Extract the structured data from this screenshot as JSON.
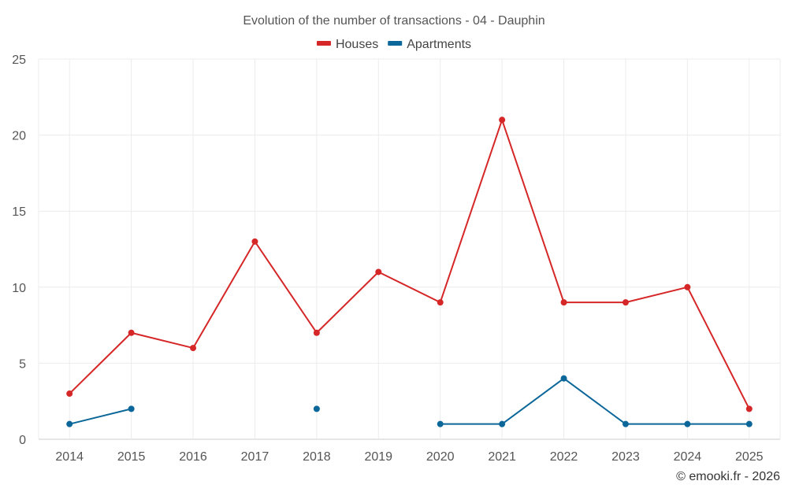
{
  "chart_data": {
    "type": "line",
    "title": "Evolution of the number of transactions - 04 - Dauphin",
    "categories": [
      "2014",
      "2015",
      "2016",
      "2017",
      "2018",
      "2019",
      "2020",
      "2021",
      "2022",
      "2023",
      "2024",
      "2025"
    ],
    "series": [
      {
        "name": "Houses",
        "color": "#d62728",
        "values": [
          3,
          7,
          6,
          13,
          7,
          11,
          9,
          21,
          9,
          9,
          10,
          2
        ]
      },
      {
        "name": "Apartments",
        "color": "#0b6699",
        "values": [
          1,
          2,
          null,
          null,
          2,
          null,
          1,
          1,
          4,
          1,
          1,
          1
        ]
      }
    ],
    "ylim": [
      0,
      25
    ],
    "yticks": [
      0,
      5,
      10,
      15,
      20,
      25
    ],
    "xlabel": "",
    "ylabel": "",
    "grid": true,
    "legend": "top-center"
  },
  "credit": "© emooki.fr - 2026"
}
